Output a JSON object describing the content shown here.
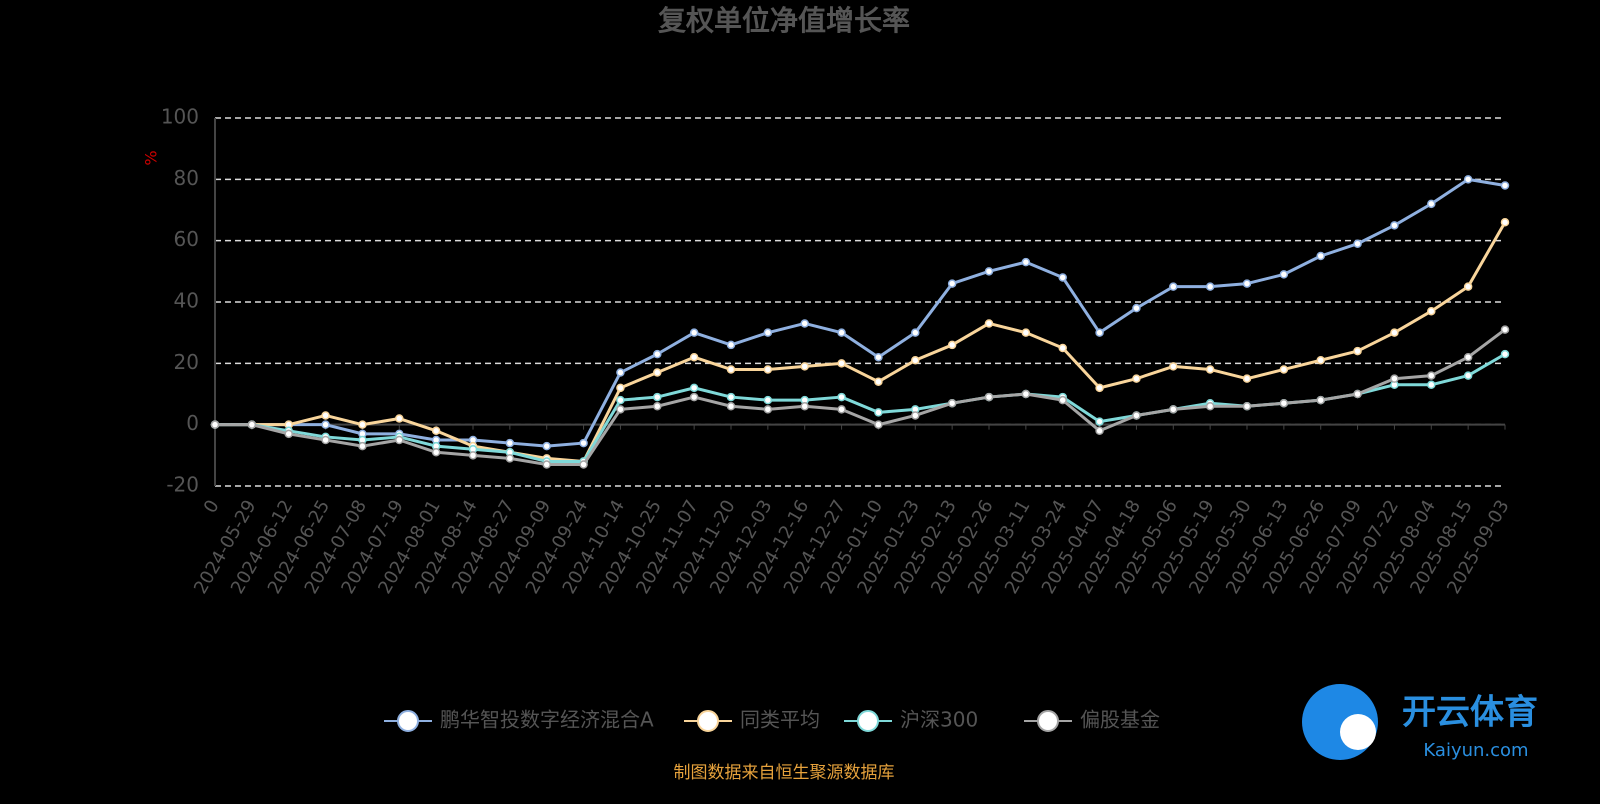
{
  "chart_data": {
    "type": "line",
    "title": "复权单位净值增长率",
    "y_label": "%",
    "categories": [
      "0",
      "2024-05-29",
      "2024-06-12",
      "2024-06-25",
      "2024-07-08",
      "2024-07-19",
      "2024-08-01",
      "2024-08-14",
      "2024-08-27",
      "2024-09-09",
      "2024-09-24",
      "2024-10-14",
      "2024-10-25",
      "2024-11-07",
      "2024-11-20",
      "2024-12-03",
      "2024-12-16",
      "2024-12-27",
      "2025-01-10",
      "2025-01-23",
      "2025-02-13",
      "2025-02-26",
      "2025-03-11",
      "2025-03-24",
      "2025-04-07",
      "2025-04-18",
      "2025-05-06",
      "2025-05-19",
      "2025-05-30",
      "2025-06-13",
      "2025-06-26",
      "2025-07-09",
      "2025-07-22",
      "2025-08-04",
      "2025-08-15",
      "2025-09-03"
    ],
    "series": [
      {
        "name": "鹏华智投数字经济混合A",
        "color": "#8fb0e0",
        "values": [
          0,
          0,
          0,
          0,
          -3,
          -3,
          -5,
          -5,
          -6,
          -7,
          -6,
          17,
          23,
          30,
          26,
          30,
          33,
          30,
          22,
          30,
          46,
          50,
          53,
          48,
          30,
          38,
          45,
          45,
          46,
          49,
          55,
          59,
          65,
          72,
          80,
          78
        ]
      },
      {
        "name": "同类平均",
        "color": "#f9d59b",
        "values": [
          0,
          0,
          0,
          3,
          0,
          2,
          -2,
          -7,
          -9,
          -11,
          -12,
          12,
          17,
          22,
          18,
          18,
          19,
          20,
          14,
          21,
          26,
          33,
          30,
          25,
          12,
          15,
          19,
          18,
          15,
          18,
          21,
          24,
          30,
          37,
          45,
          66
        ]
      },
      {
        "name": "沪深300",
        "color": "#7fd9d9",
        "values": [
          0,
          0,
          -2,
          -4,
          -5,
          -4,
          -7,
          -8,
          -9,
          -12,
          -12,
          8,
          9,
          12,
          9,
          8,
          8,
          9,
          4,
          5,
          7,
          9,
          10,
          9,
          1,
          3,
          5,
          7,
          6,
          7,
          8,
          10,
          13,
          13,
          16,
          23
        ]
      },
      {
        "name": "偏股基金",
        "color": "#a5a5a5",
        "values": [
          0,
          0,
          -3,
          -5,
          -7,
          -5,
          -9,
          -10,
          -11,
          -13,
          -13,
          5,
          6,
          9,
          6,
          5,
          6,
          5,
          0,
          3,
          7,
          9,
          10,
          8,
          -2,
          3,
          5,
          6,
          6,
          7,
          8,
          10,
          15,
          16,
          22,
          31
        ]
      }
    ],
    "ylim": [
      -20,
      100
    ],
    "yticks": [
      -20,
      0,
      20,
      40,
      60,
      80,
      100
    ],
    "grid": true,
    "source": "制图数据来自恒生聚源数据库",
    "watermark": {
      "brand": "开云体育",
      "site": "Kaiyun.com"
    }
  }
}
